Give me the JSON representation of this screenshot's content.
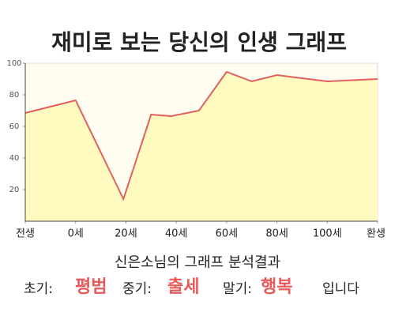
{
  "chart_data": {
    "type": "line",
    "title": "재미로 보는 당신의 인생 그래프",
    "x": [
      -20,
      0,
      19,
      30,
      38,
      49,
      60,
      70,
      80,
      100,
      120
    ],
    "values": [
      68.5,
      76.5,
      14,
      67.5,
      66.5,
      70,
      94.5,
      88.5,
      92.5,
      88.5,
      90
    ],
    "color": "#e06060",
    "fill": "#fffbc0",
    "xlim": [
      -20,
      120
    ],
    "xticks": [
      {
        "value": -20,
        "label": "전생"
      },
      {
        "value": 0,
        "label": "0세"
      },
      {
        "value": 20,
        "label": "20세"
      },
      {
        "value": 40,
        "label": "40세"
      },
      {
        "value": 60,
        "label": "60세"
      },
      {
        "value": 80,
        "label": "80세"
      },
      {
        "value": 100,
        "label": "100세"
      },
      {
        "value": 120,
        "label": "환생"
      }
    ],
    "ylim": [
      0,
      100
    ],
    "yticks": [
      20,
      40,
      60,
      80,
      100
    ],
    "grid": false
  },
  "result": {
    "title": "신은소님의 그래프 분석결과",
    "parts": [
      {
        "label": "초기:",
        "value": "평범"
      },
      {
        "label": "중기:",
        "value": "출세"
      },
      {
        "label": "말기:",
        "value": "행복"
      }
    ],
    "ending": "입니다"
  }
}
